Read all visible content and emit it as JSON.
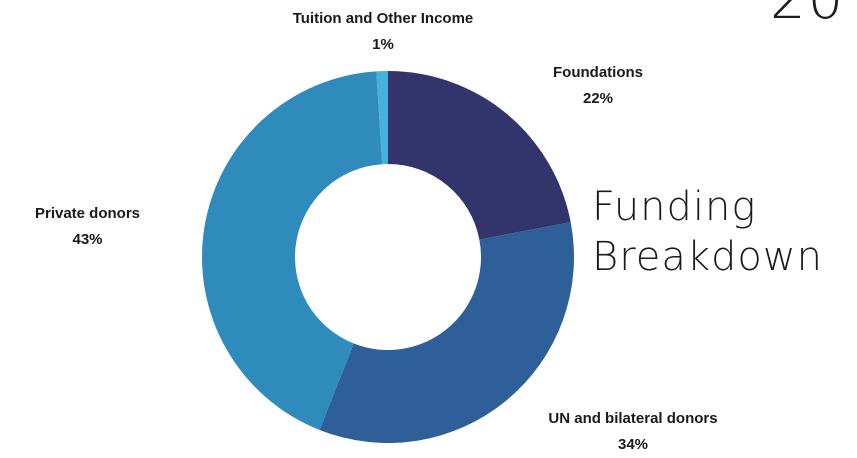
{
  "corner_text": "20",
  "heading": {
    "line1": "Funding",
    "line2": "Breakdown"
  },
  "chart_data": {
    "type": "pie",
    "style": "donut",
    "categories": [
      "Foundations",
      "UN and bilateral donors",
      "Private donors",
      "Tuition and Other Income"
    ],
    "values": [
      22,
      34,
      43,
      1
    ],
    "labels": [
      "22%",
      "34%",
      "43%",
      "1%"
    ],
    "colors": [
      "#33346c",
      "#2e5f99",
      "#2e8bbc",
      "#45b2dc"
    ],
    "title": "",
    "legend": "none"
  }
}
